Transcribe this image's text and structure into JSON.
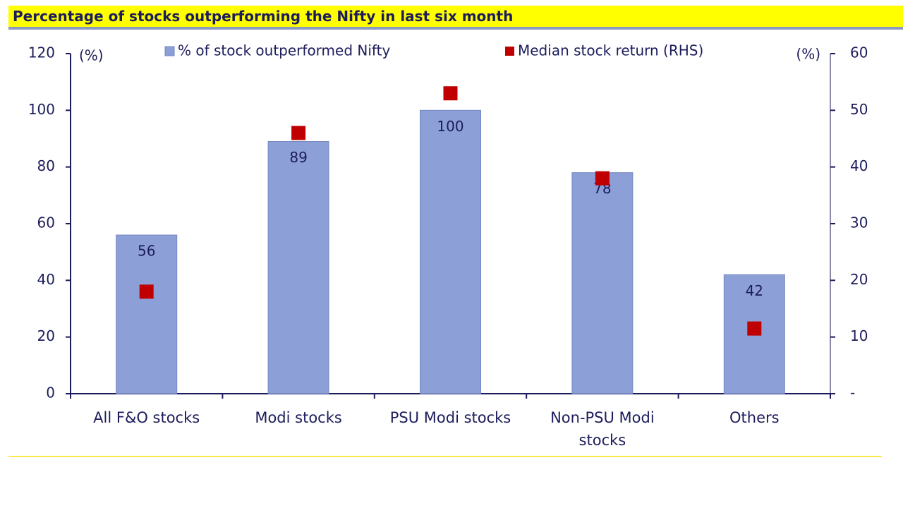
{
  "chart_data": {
    "type": "bar",
    "title": "Percentage of stocks outperforming the Nifty in last six month",
    "y_label": "(%)",
    "y2_label": "(%)",
    "categories": [
      "All F&O stocks",
      "Modi stocks",
      "PSU Modi stocks",
      "Non-PSU Modi stocks",
      "Others"
    ],
    "series": [
      {
        "name": "% of stock outperformed Nifty",
        "type": "bar",
        "color": "#8c9fd6",
        "values": [
          56,
          89,
          100,
          78,
          42
        ],
        "data_labels": true
      },
      {
        "name": "Median stock return (RHS)",
        "type": "scatter",
        "axis": "y2",
        "color": "#c00000",
        "values": [
          18,
          46,
          53,
          38,
          11.5
        ]
      }
    ],
    "ylim": [
      0,
      120
    ],
    "yticks": [
      0,
      20,
      40,
      60,
      80,
      100,
      120
    ],
    "y2lim": [
      0,
      60
    ],
    "y2ticks": [
      {
        "value": 0,
        "label": "-"
      },
      10,
      20,
      30,
      40,
      50,
      60
    ]
  }
}
